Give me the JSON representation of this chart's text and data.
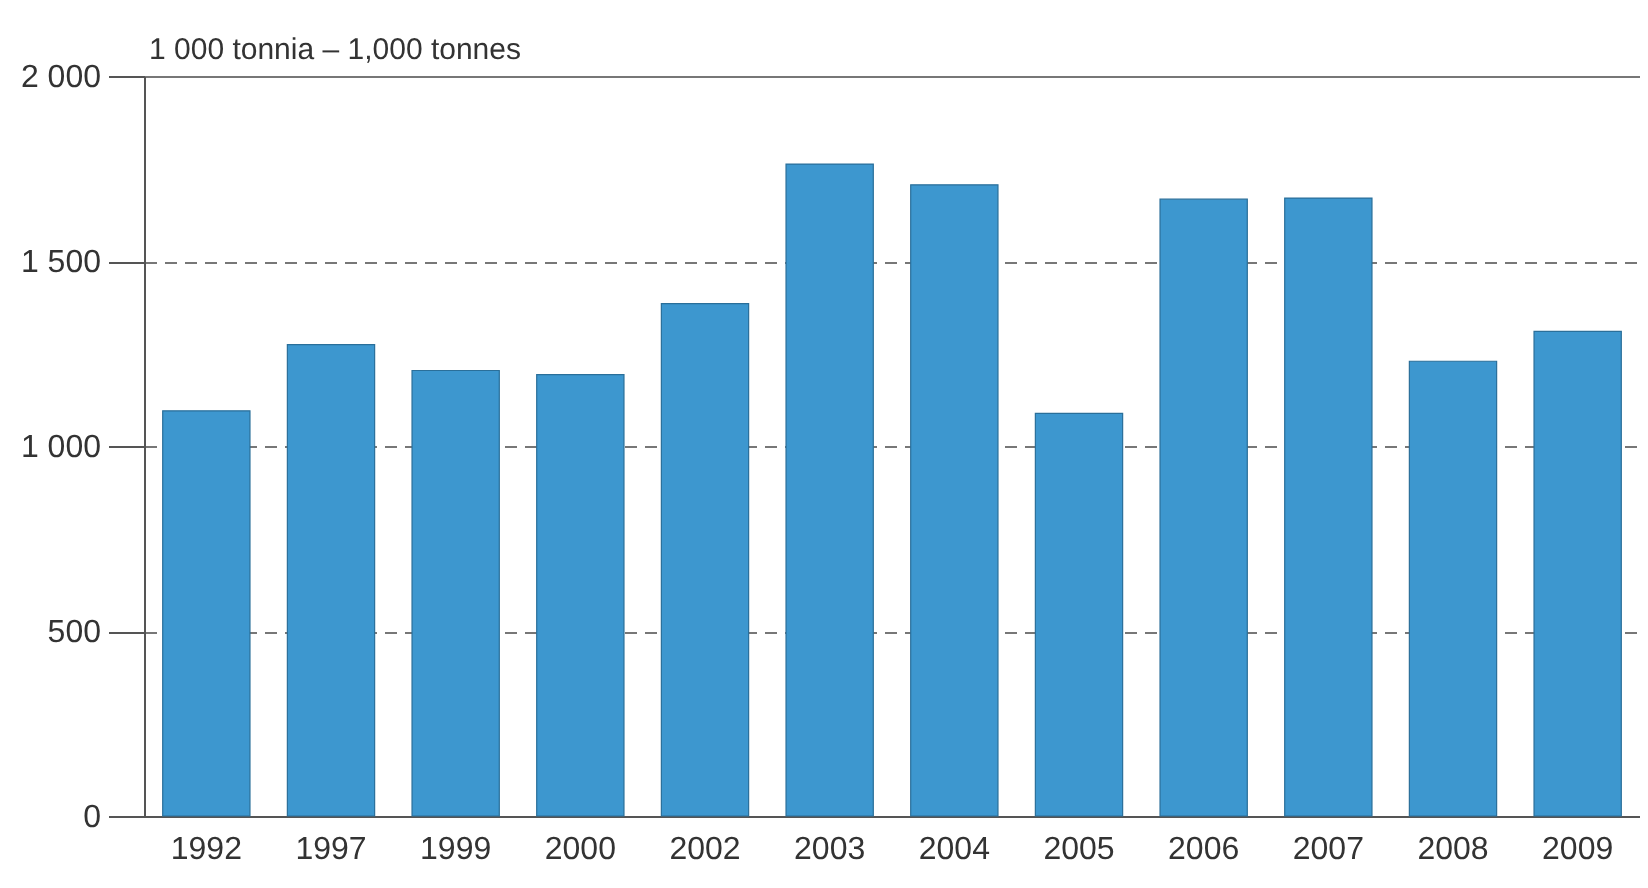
{
  "chart_data": {
    "type": "bar",
    "ylabel": "1 000 tonnia – 1,000 tonnes",
    "categories": [
      "1992",
      "1997",
      "1999",
      "2000",
      "2002",
      "2003",
      "2004",
      "2005",
      "2006",
      "2007",
      "2008",
      "2009"
    ],
    "values": [
      1095,
      1274,
      1204,
      1193,
      1385,
      1762,
      1706,
      1088,
      1667,
      1670,
      1229,
      1310
    ],
    "color": "#3d97cf",
    "ylim": [
      0,
      2000
    ],
    "yticks": [
      0,
      500,
      {
        "value": 1000,
        "label": "1 000"
      },
      {
        "value": 1500,
        "label": "1 500"
      },
      {
        "value": 2000,
        "label": "2 000"
      }
    ],
    "grid": "y",
    "line_style": "dashed"
  }
}
